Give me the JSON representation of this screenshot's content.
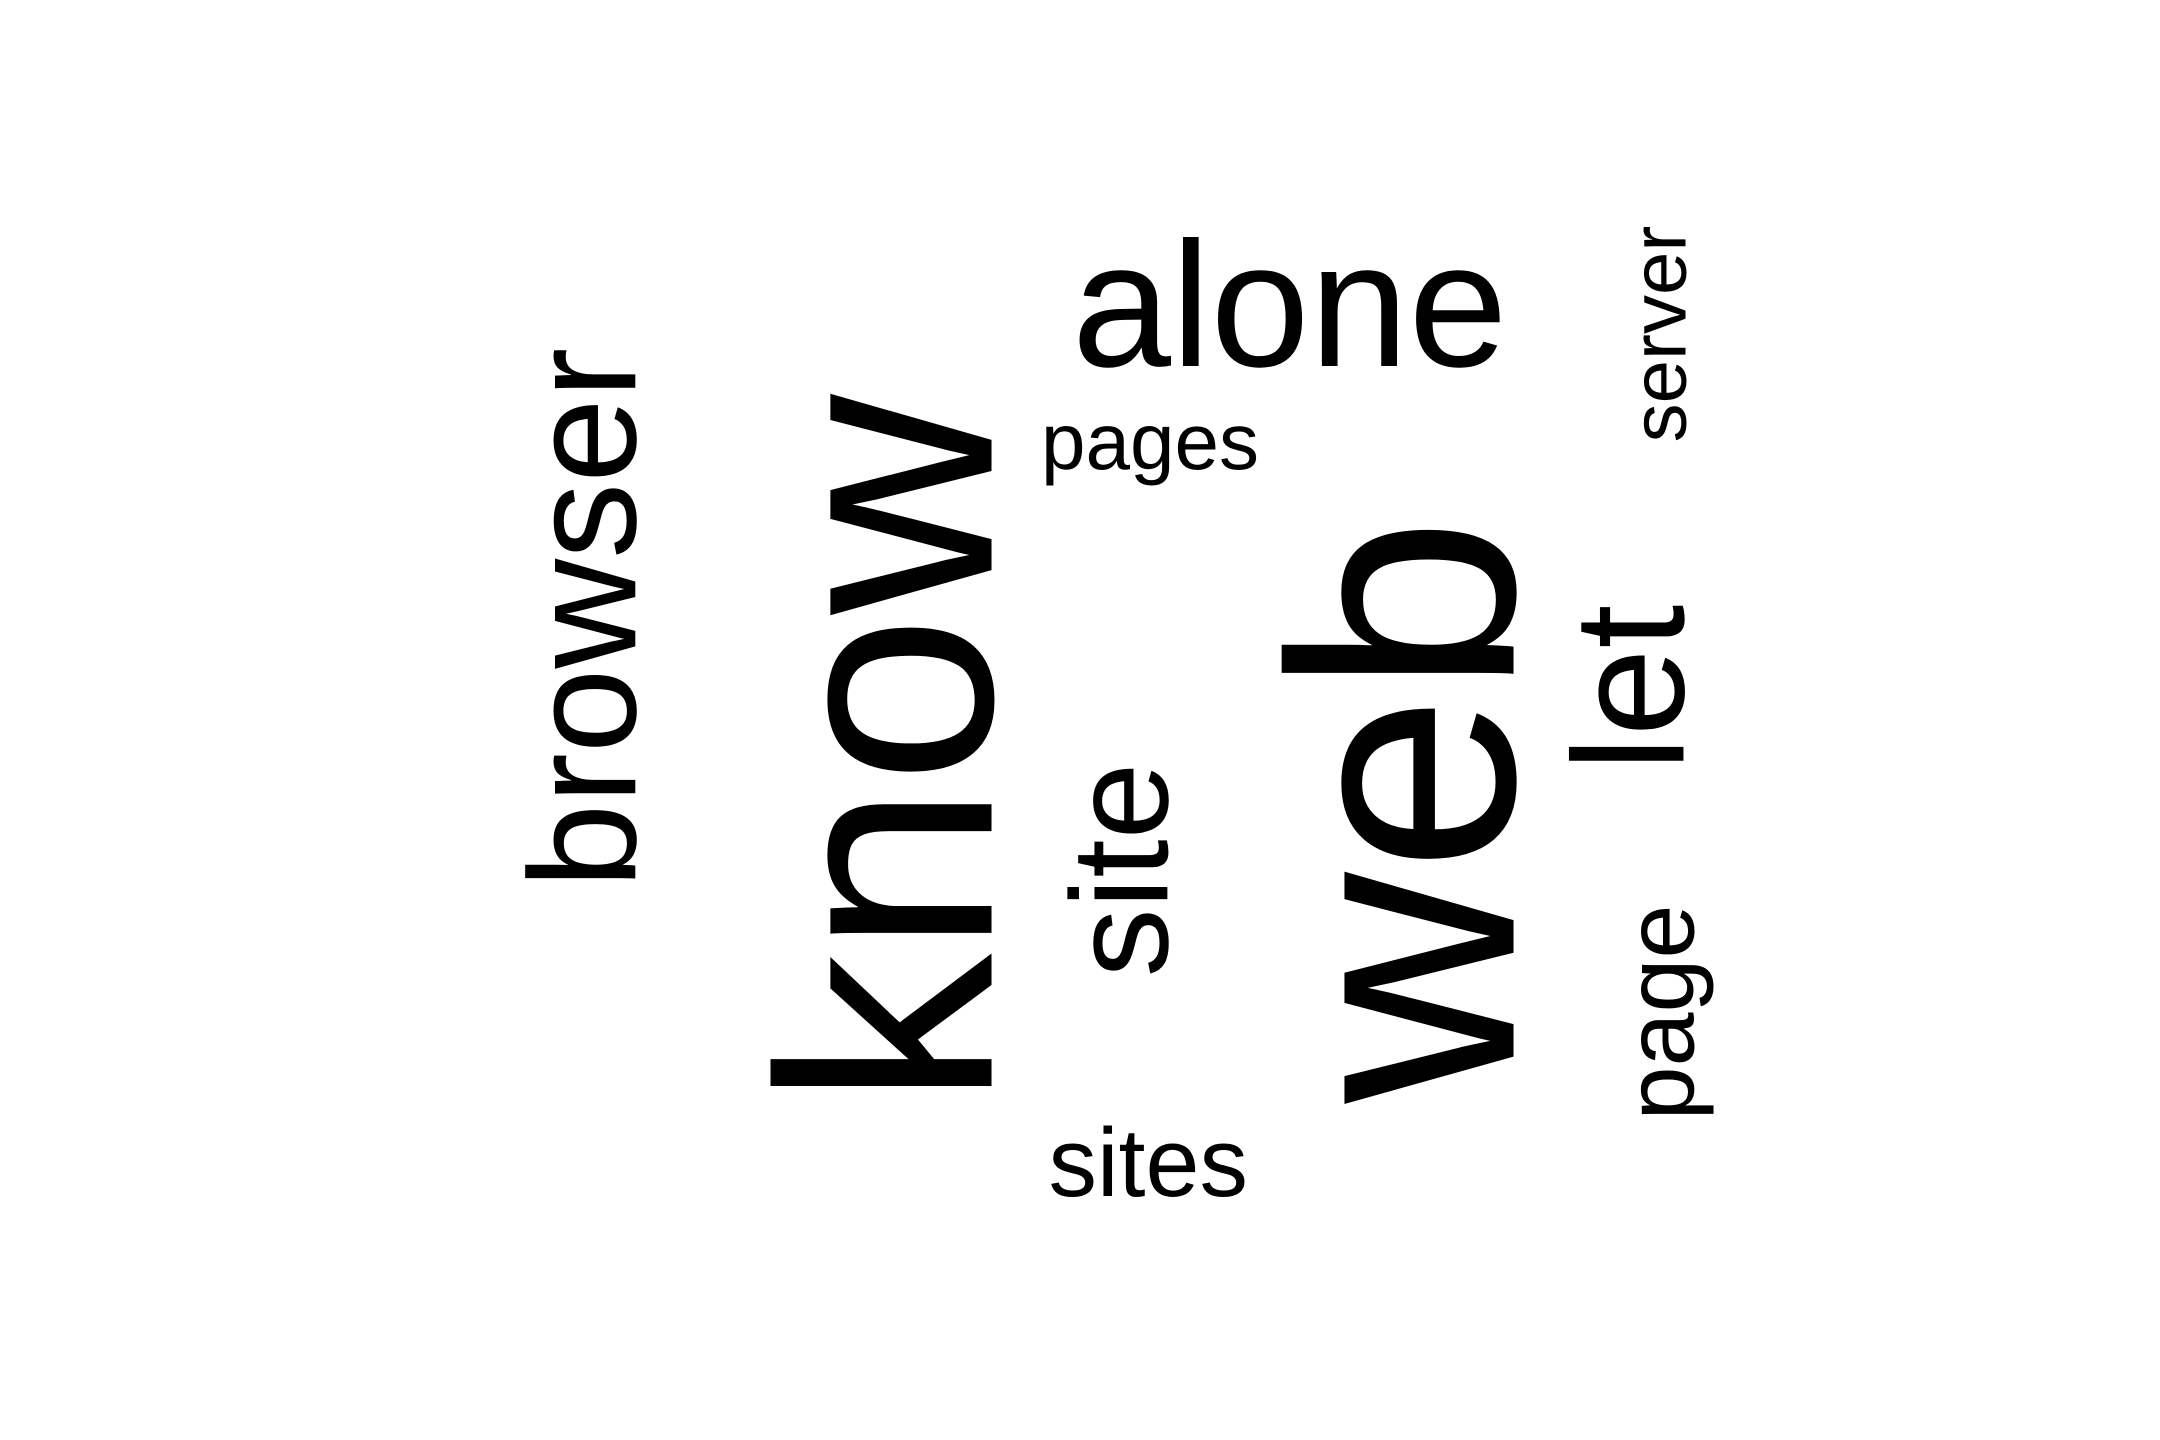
{
  "word_cloud": {
    "words": [
      {
        "text": "web",
        "rank": 1,
        "rotated": true
      },
      {
        "text": "know",
        "rank": 2,
        "rotated": true
      },
      {
        "text": "alone",
        "rank": 3,
        "rotated": false
      },
      {
        "text": "let",
        "rank": 4,
        "rotated": true
      },
      {
        "text": "browser",
        "rank": 5,
        "rotated": true
      },
      {
        "text": "site",
        "rank": 6,
        "rotated": true
      },
      {
        "text": "page",
        "rank": 7,
        "rotated": true
      },
      {
        "text": "sites",
        "rank": 8,
        "rotated": false
      },
      {
        "text": "pages",
        "rank": 9,
        "rotated": false
      },
      {
        "text": "server",
        "rank": 10,
        "rotated": true
      }
    ],
    "text_color": "#000000",
    "background_color": "#ffffff"
  }
}
